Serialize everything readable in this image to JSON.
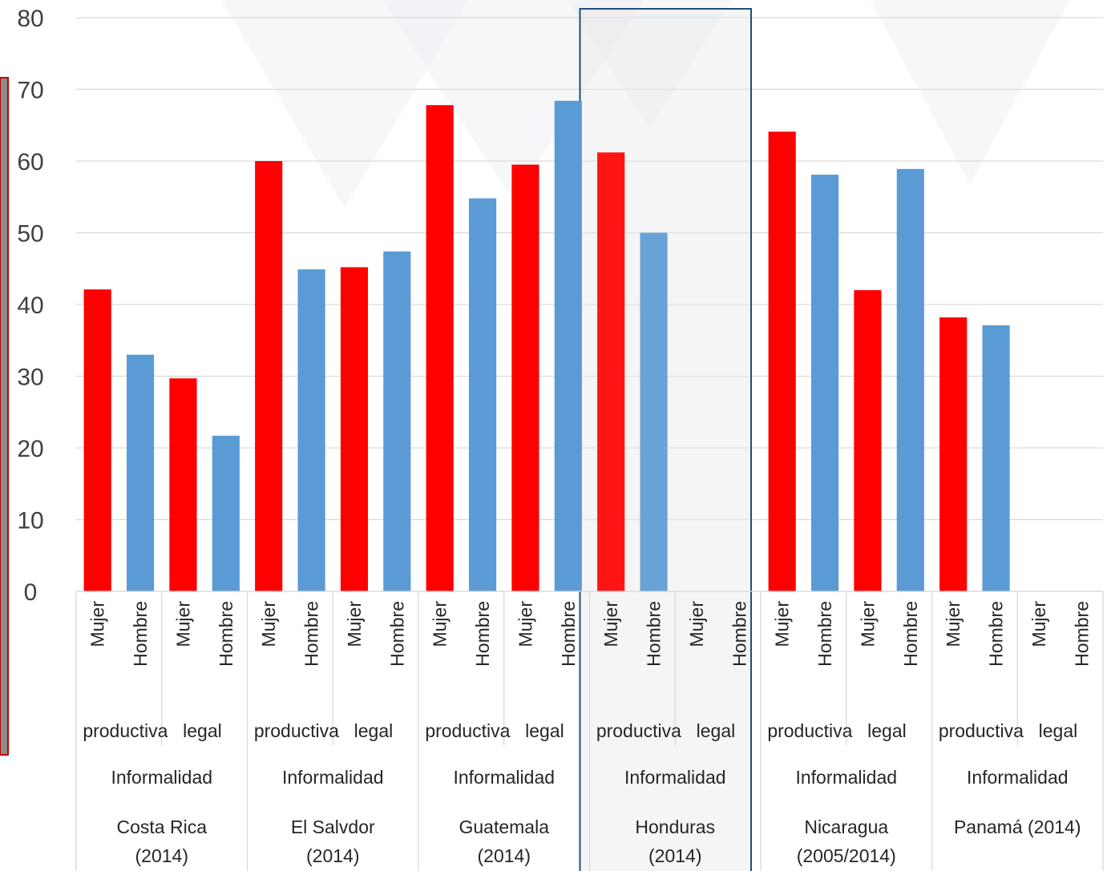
{
  "chart_data": {
    "type": "bar",
    "ylim": [
      0,
      80
    ],
    "yticks": [
      0,
      10,
      20,
      30,
      40,
      50,
      60,
      70,
      80
    ],
    "grid": true,
    "legend": "none",
    "countries": [
      {
        "label1": "Costa Rica",
        "label2": "(2014)"
      },
      {
        "label1": "El Salvdor",
        "label2": "(2014)"
      },
      {
        "label1": "Guatemala",
        "label2": "(2014)"
      },
      {
        "label1": "Honduras",
        "label2": "(2014)"
      },
      {
        "label1": "Nicaragua",
        "label2": "(2005/2014)"
      },
      {
        "label1": "Panamá (2014)",
        "label2": ""
      }
    ],
    "group_labels": [
      "productiva",
      "legal"
    ],
    "informalidad_label": "Informalidad",
    "sexes": [
      "Mujer",
      "Hombre"
    ],
    "values": [
      [
        42.1,
        33.0,
        29.7,
        21.7
      ],
      [
        60.0,
        44.9,
        45.2,
        47.4
      ],
      [
        67.8,
        54.8,
        59.5,
        68.4
      ],
      [
        61.2,
        50.0,
        null,
        null
      ],
      [
        64.1,
        58.1,
        42.0,
        58.9
      ],
      [
        38.2,
        37.1,
        null,
        null
      ]
    ],
    "highlight_index": 3,
    "colors": {
      "mujer": "#ff0000",
      "hombre": "#5b9bd5",
      "highlight_box": "#1f4e79",
      "left_box_border": "#c00000",
      "left_box_fill": "#8c8c8c"
    }
  }
}
